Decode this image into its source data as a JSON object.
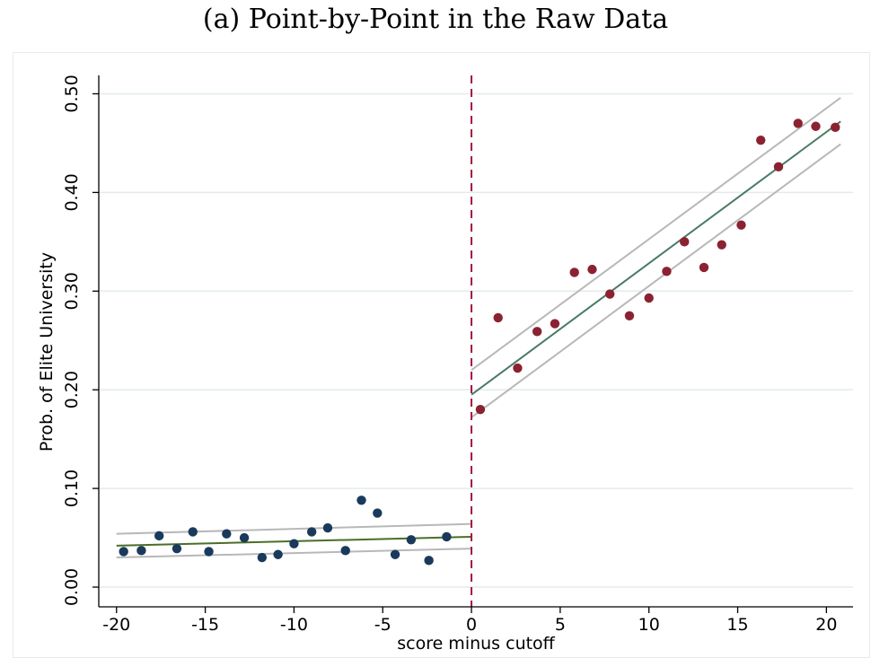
{
  "title": "(a) Point-by-Point in the Raw Data",
  "chart_data": {
    "type": "scatter",
    "title": "(a) Point-by-Point in the Raw Data",
    "xlabel": "score minus cutoff",
    "ylabel": "Prob. of Elite University",
    "xlim": [
      -21,
      21.5
    ],
    "ylim": [
      -0.02,
      0.515
    ],
    "xticks": [
      -20,
      -15,
      -10,
      -5,
      0,
      5,
      10,
      15,
      20
    ],
    "xtick_labels": [
      "-20",
      "-15",
      "-10",
      "-5",
      "0",
      "5",
      "10",
      "15",
      "20"
    ],
    "yticks": [
      0.0,
      0.1,
      0.2,
      0.3,
      0.4,
      0.5
    ],
    "ytick_labels": [
      "0.00",
      "0.10",
      "0.20",
      "0.30",
      "0.40",
      "0.50"
    ],
    "grid": true,
    "cutoff": 0,
    "series": [
      {
        "name": "below cutoff",
        "color": "#1a3a5c",
        "x": [
          -19.6,
          -18.6,
          -17.6,
          -16.6,
          -15.7,
          -14.8,
          -13.8,
          -12.8,
          -11.8,
          -10.9,
          -10.0,
          -9.0,
          -8.1,
          -7.1,
          -6.2,
          -5.3,
          -4.3,
          -3.4,
          -2.4,
          -1.4
        ],
        "y": [
          0.036,
          0.037,
          0.052,
          0.039,
          0.056,
          0.036,
          0.054,
          0.05,
          0.03,
          0.033,
          0.044,
          0.056,
          0.06,
          0.037,
          0.088,
          0.075,
          0.033,
          0.048,
          0.027,
          0.051
        ]
      },
      {
        "name": "above cutoff",
        "color": "#8b2232",
        "x": [
          0.5,
          1.5,
          2.6,
          3.7,
          4.7,
          5.8,
          6.8,
          7.8,
          8.9,
          10.0,
          11.0,
          12.0,
          13.1,
          14.1,
          15.2,
          16.3,
          17.3,
          18.4,
          19.4,
          20.5
        ],
        "y": [
          0.18,
          0.273,
          0.222,
          0.259,
          0.267,
          0.319,
          0.322,
          0.297,
          0.275,
          0.293,
          0.32,
          0.35,
          0.324,
          0.347,
          0.367,
          0.453,
          0.426,
          0.47,
          0.467,
          0.466
        ]
      }
    ],
    "fits": [
      {
        "name": "fit below",
        "color": "#4a6e2a",
        "x": [
          -20,
          0
        ],
        "y": [
          0.042,
          0.051
        ]
      },
      {
        "name": "fit above",
        "color": "#4a7a66",
        "x": [
          0,
          20.8
        ],
        "y": [
          0.195,
          0.472
        ]
      }
    ],
    "confidence_bands": [
      {
        "name": "band below upper",
        "color": "#b8b8b8",
        "x": [
          -20,
          0
        ],
        "y": [
          0.054,
          0.064
        ]
      },
      {
        "name": "band below lower",
        "color": "#b8b8b8",
        "x": [
          -20,
          0
        ],
        "y": [
          0.03,
          0.039
        ]
      },
      {
        "name": "band above upper",
        "color": "#b8b8b8",
        "x": [
          0,
          20.8
        ],
        "y": [
          0.22,
          0.496
        ]
      },
      {
        "name": "band above lower",
        "color": "#b8b8b8",
        "x": [
          0,
          20.8
        ],
        "y": [
          0.172,
          0.449
        ]
      }
    ],
    "cutoff_line_color": "#a3183c",
    "grid_color": "#e3ebee"
  }
}
